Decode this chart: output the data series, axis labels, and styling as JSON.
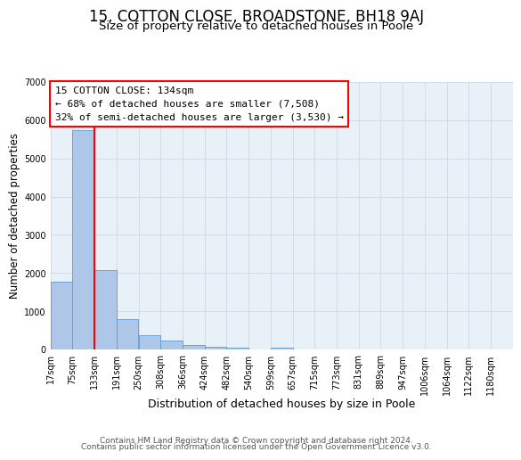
{
  "title": "15, COTTON CLOSE, BROADSTONE, BH18 9AJ",
  "subtitle": "Size of property relative to detached houses in Poole",
  "xlabel": "Distribution of detached houses by size in Poole",
  "ylabel": "Number of detached properties",
  "bar_left_edges": [
    17,
    75,
    133,
    191,
    250,
    308,
    366,
    424,
    482,
    540,
    599,
    657,
    715,
    773,
    831,
    889,
    947,
    1006,
    1064,
    1122
  ],
  "bar_heights": [
    1780,
    5750,
    2080,
    790,
    370,
    230,
    110,
    60,
    40,
    0,
    40,
    0,
    0,
    0,
    0,
    0,
    0,
    0,
    0,
    0
  ],
  "bin_width": 58,
  "bar_color": "#aec6e8",
  "bar_edge_color": "#5b9bd5",
  "vline_x": 133,
  "vline_color": "red",
  "vline_linewidth": 1.5,
  "ylim": [
    0,
    7000
  ],
  "yticks": [
    0,
    1000,
    2000,
    3000,
    4000,
    5000,
    6000,
    7000
  ],
  "xtick_labels": [
    "17sqm",
    "75sqm",
    "133sqm",
    "191sqm",
    "250sqm",
    "308sqm",
    "366sqm",
    "424sqm",
    "482sqm",
    "540sqm",
    "599sqm",
    "657sqm",
    "715sqm",
    "773sqm",
    "831sqm",
    "889sqm",
    "947sqm",
    "1006sqm",
    "1064sqm",
    "1122sqm",
    "1180sqm"
  ],
  "xtick_positions": [
    17,
    75,
    133,
    191,
    250,
    308,
    366,
    424,
    482,
    540,
    599,
    657,
    715,
    773,
    831,
    889,
    947,
    1006,
    1064,
    1122,
    1180
  ],
  "annotation_title": "15 COTTON CLOSE: 134sqm",
  "annotation_line1": "← 68% of detached houses are smaller (7,508)",
  "annotation_line2": "32% of semi-detached houses are larger (3,530) →",
  "annotation_box_color": "white",
  "annotation_box_edge": "red",
  "grid_color": "#d0dce8",
  "bg_color": "#e8f0f8",
  "footer1": "Contains HM Land Registry data © Crown copyright and database right 2024.",
  "footer2": "Contains public sector information licensed under the Open Government Licence v3.0.",
  "title_fontsize": 12,
  "subtitle_fontsize": 9.5,
  "xlabel_fontsize": 9,
  "ylabel_fontsize": 8.5,
  "tick_fontsize": 7,
  "footer_fontsize": 6.5,
  "ann_fontsize": 8
}
